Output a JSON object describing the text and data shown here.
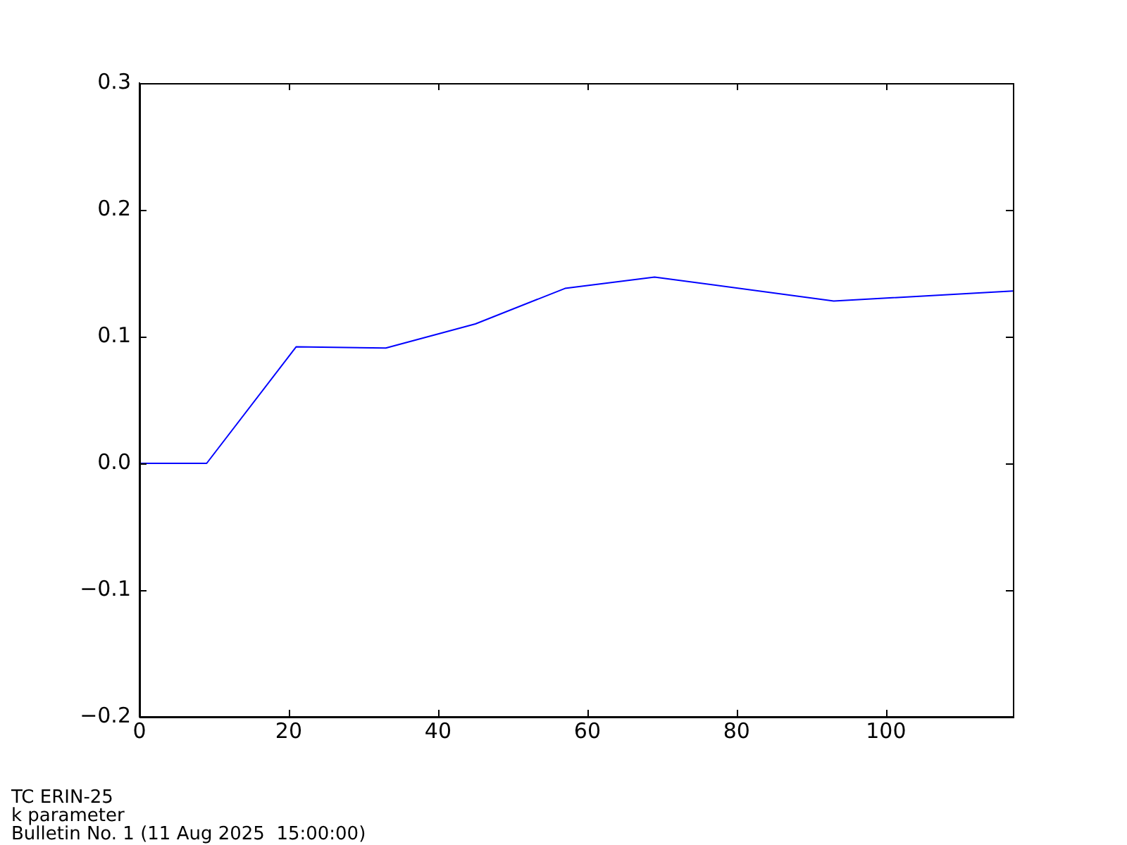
{
  "chart_data": {
    "type": "line",
    "x": [
      0,
      9,
      21,
      33,
      45,
      57,
      69,
      93,
      117
    ],
    "series": [
      {
        "color": "#0000ff",
        "values": [
          0,
          0,
          0.092,
          0.091,
          0.11,
          0.138,
          0.147,
          0.128,
          0.136
        ]
      }
    ],
    "xlim": [
      0,
      117
    ],
    "xticks": [
      0,
      20,
      40,
      60,
      80,
      100
    ],
    "ylim": [
      -0.2,
      0.3
    ],
    "yticks": [
      {
        "value": -0.2,
        "label": "−0.2"
      },
      {
        "value": -0.1,
        "label": "−0.1"
      },
      {
        "value": 0,
        "label": "0.0"
      },
      {
        "value": 0.1,
        "label": "0.1"
      },
      {
        "value": 0.2,
        "label": "0.2"
      },
      {
        "value": 0.3,
        "label": "0.3"
      }
    ],
    "marker": "none",
    "line_style": "solid",
    "legend": false,
    "annotations": [
      "TC ERIN-25",
      "k parameter",
      "Bulletin No. 1 (11 Aug 2025  15:00:00)"
    ]
  }
}
